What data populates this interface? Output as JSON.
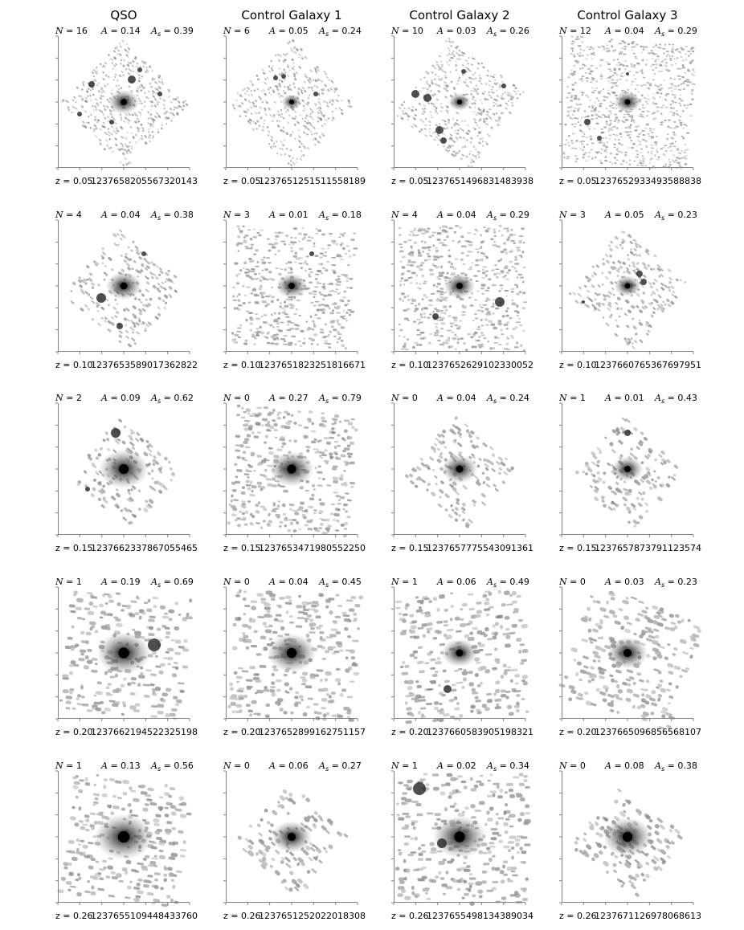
{
  "columns": [
    "QSO",
    "Control Galaxy 1",
    "Control Galaxy 2",
    "Control Galaxy 3"
  ],
  "rows": [
    {
      "z": "0.05",
      "cells": [
        {
          "N": "16",
          "A": "0.14",
          "As": "0.39",
          "id": "1237658205567320143"
        },
        {
          "N": "6",
          "A": "0.05",
          "As": "0.24",
          "id": "1237651251511558189"
        },
        {
          "N": "10",
          "A": "0.03",
          "As": "0.26",
          "id": "1237651496831483938"
        },
        {
          "N": "12",
          "A": "0.04",
          "As": "0.29",
          "id": "1237652933493588838"
        }
      ]
    },
    {
      "z": "0.10",
      "cells": [
        {
          "N": "4",
          "A": "0.04",
          "As": "0.38",
          "id": "1237653589017362822"
        },
        {
          "N": "3",
          "A": "0.01",
          "As": "0.18",
          "id": "1237651823251816671"
        },
        {
          "N": "4",
          "A": "0.04",
          "As": "0.29",
          "id": "1237652629102330052"
        },
        {
          "N": "3",
          "A": "0.05",
          "As": "0.23",
          "id": "1237660765367697951"
        }
      ]
    },
    {
      "z": "0.15",
      "cells": [
        {
          "N": "2",
          "A": "0.09",
          "As": "0.62",
          "id": "1237662337867055465"
        },
        {
          "N": "0",
          "A": "0.27",
          "As": "0.79",
          "id": "1237653471980552250"
        },
        {
          "N": "0",
          "A": "0.04",
          "As": "0.24",
          "id": "1237657775543091361"
        },
        {
          "N": "1",
          "A": "0.01",
          "As": "0.43",
          "id": "1237657873791123574"
        }
      ]
    },
    {
      "z": "0.20",
      "cells": [
        {
          "N": "1",
          "A": "0.19",
          "As": "0.69",
          "id": "1237662194522325198"
        },
        {
          "N": "0",
          "A": "0.04",
          "As": "0.45",
          "id": "1237652899162751157"
        },
        {
          "N": "1",
          "A": "0.06",
          "As": "0.49",
          "id": "1237660583905198321"
        },
        {
          "N": "0",
          "A": "0.03",
          "As": "0.23",
          "id": "1237665096856568107"
        }
      ]
    },
    {
      "z": "0.26",
      "cells": [
        {
          "N": "1",
          "A": "0.13",
          "As": "0.56",
          "id": "1237655109448433760"
        },
        {
          "N": "0",
          "A": "0.06",
          "As": "0.27",
          "id": "1237651252022018308"
        },
        {
          "N": "1",
          "A": "0.02",
          "As": "0.34",
          "id": "1237655498134389034"
        },
        {
          "N": "0",
          "A": "0.08",
          "As": "0.38",
          "id": "1237671126978068613"
        }
      ]
    }
  ],
  "labels": {
    "N": "N",
    "A": "A",
    "As_base": "A",
    "As_sub": "s",
    "z": "z",
    "eq": " = "
  },
  "colors": {
    "frame": "#808080",
    "noise": "#9a9a9a",
    "core": "#000000"
  }
}
